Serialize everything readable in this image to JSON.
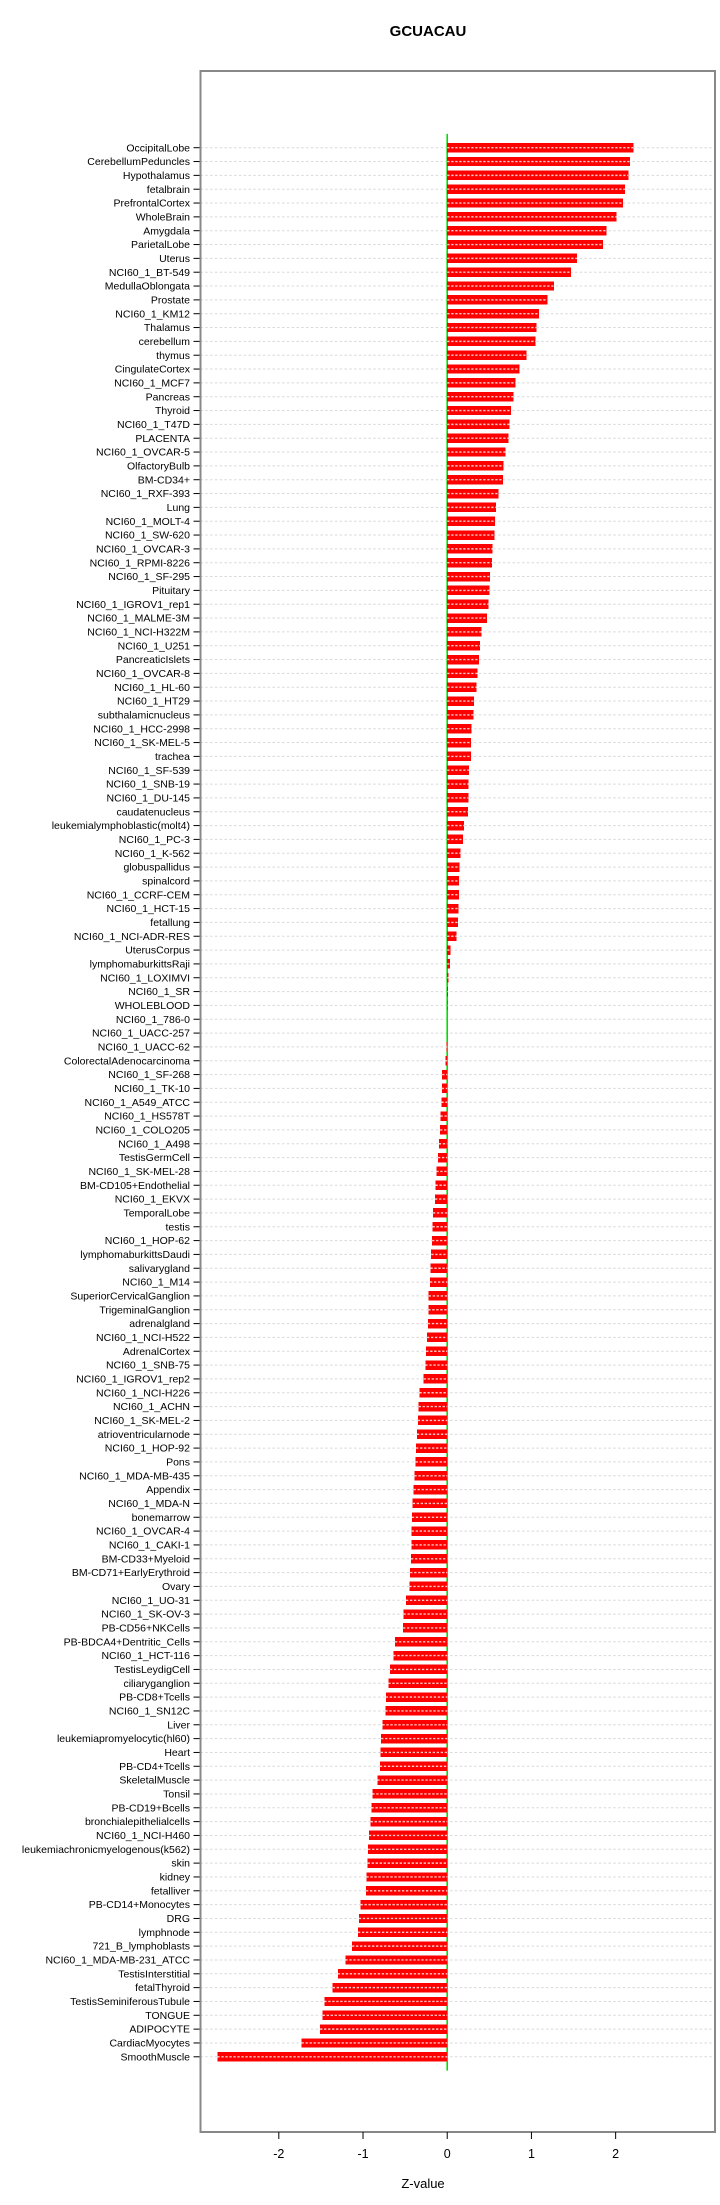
{
  "page": {
    "background": "#ffffff"
  },
  "chart_data": {
    "type": "bar",
    "orientation": "horizontal",
    "title": "GCUACAU",
    "xlabel": "Z-value",
    "x_ticks": [
      -2,
      -1,
      0,
      1,
      2
    ],
    "x_tick_labels": [
      "-2",
      "-1",
      "0",
      "1",
      "2"
    ],
    "xlim": [
      -2.93,
      3.18
    ],
    "grid": true,
    "legend": "none",
    "bar_color": "#ff0000",
    "bar_stripe_color": "#ffffff",
    "zero_line_color": "#00dd00",
    "grid_color": "#d8d8d8",
    "box_color": "#888888",
    "text_color": "#000000",
    "categories": [
      "OccipitalLobe",
      "CerebellumPeduncles",
      "Hypothalamus",
      "fetalbrain",
      "PrefrontalCortex",
      "WholeBrain",
      "Amygdala",
      "ParietalLobe",
      "Uterus",
      "NCI60_1_BT-549",
      "MedullaOblongata",
      "Prostate",
      "NCI60_1_KM12",
      "Thalamus",
      "cerebellum",
      "thymus",
      "CingulateCortex",
      "NCI60_1_MCF7",
      "Pancreas",
      "Thyroid",
      "NCI60_1_T47D",
      "PLACENTA",
      "NCI60_1_OVCAR-5",
      "OlfactoryBulb",
      "BM-CD34+",
      "NCI60_1_RXF-393",
      "Lung",
      "NCI60_1_MOLT-4",
      "NCI60_1_SW-620",
      "NCI60_1_OVCAR-3",
      "NCI60_1_RPMI-8226",
      "NCI60_1_SF-295",
      "Pituitary",
      "NCI60_1_IGROV1_rep1",
      "NCI60_1_MALME-3M",
      "NCI60_1_NCI-H322M",
      "NCI60_1_U251",
      "PancreaticIslets",
      "NCI60_1_OVCAR-8",
      "NCI60_1_HL-60",
      "NCI60_1_HT29",
      "subthalamicnucleus",
      "NCI60_1_HCC-2998",
      "NCI60_1_SK-MEL-5",
      "trachea",
      "NCI60_1_SF-539",
      "NCI60_1_SNB-19",
      "NCI60_1_DU-145",
      "caudatenucleus",
      "leukemialymphoblastic(molt4)",
      "NCI60_1_PC-3",
      "NCI60_1_K-562",
      "globuspallidus",
      "spinalcord",
      "NCI60_1_CCRF-CEM",
      "NCI60_1_HCT-15",
      "fetallung",
      "NCI60_1_NCI-ADR-RES",
      "UterusCorpus",
      "lymphomaburkittsRaji",
      "NCI60_1_LOXIMVI",
      "NCI60_1_SR",
      "WHOLEBLOOD",
      "NCI60_1_786-0",
      "NCI60_1_UACC-257",
      "NCI60_1_UACC-62",
      "ColorectalAdenocarcinoma",
      "NCI60_1_SF-268",
      "NCI60_1_TK-10",
      "NCI60_1_A549_ATCC",
      "NCI60_1_HS578T",
      "NCI60_1_COLO205",
      "NCI60_1_A498",
      "TestisGermCell",
      "NCI60_1_SK-MEL-28",
      "BM-CD105+Endothelial",
      "NCI60_1_EKVX",
      "TemporalLobe",
      "testis",
      "NCI60_1_HOP-62",
      "lymphomaburkittsDaudi",
      "salivarygland",
      "NCI60_1_M14",
      "SuperiorCervicalGanglion",
      "TrigeminalGanglion",
      "adrenalgland",
      "NCI60_1_NCI-H522",
      "AdrenalCortex",
      "NCI60_1_SNB-75",
      "NCI60_1_IGROV1_rep2",
      "NCI60_1_NCI-H226",
      "NCI60_1_ACHN",
      "NCI60_1_SK-MEL-2",
      "atrioventricularnode",
      "NCI60_1_HOP-92",
      "Pons",
      "NCI60_1_MDA-MB-435",
      "Appendix",
      "NCI60_1_MDA-N",
      "bonemarrow",
      "NCI60_1_OVCAR-4",
      "NCI60_1_CAKI-1",
      "BM-CD33+Myeloid",
      "BM-CD71+EarlyErythroid",
      "Ovary",
      "NCI60_1_UO-31",
      "NCI60_1_SK-OV-3",
      "PB-CD56+NKCells",
      "PB-BDCA4+Dentritic_Cells",
      "NCI60_1_HCT-116",
      "TestisLeydigCell",
      "ciliaryganglion",
      "PB-CD8+Tcells",
      "NCI60_1_SN12C",
      "Liver",
      "leukemiapromyelocytic(hl60)",
      "Heart",
      "PB-CD4+Tcells",
      "SkeletalMuscle",
      "Tonsil",
      "PB-CD19+Bcells",
      "bronchialepithelialcells",
      "NCI60_1_NCI-H460",
      "leukemiachronicmyelogenous(k562)",
      "skin",
      "kidney",
      "fetalliver",
      "PB-CD14+Monocytes",
      "DRG",
      "lymphnode",
      "721_B_lymphoblasts",
      "NCI60_1_MDA-MB-231_ATCC",
      "TestisInterstitial",
      "fetalThyroid",
      "TestisSeminiferousTubule",
      "TONGUE",
      "ADIPOCYTE",
      "CardiacMyocytes",
      "SmoothMuscle"
    ],
    "values": [
      2.21,
      2.17,
      2.15,
      2.11,
      2.09,
      2.01,
      1.89,
      1.85,
      1.54,
      1.47,
      1.27,
      1.19,
      1.09,
      1.06,
      1.05,
      0.94,
      0.86,
      0.81,
      0.79,
      0.76,
      0.74,
      0.73,
      0.69,
      0.67,
      0.66,
      0.61,
      0.58,
      0.57,
      0.56,
      0.54,
      0.53,
      0.51,
      0.5,
      0.49,
      0.47,
      0.41,
      0.39,
      0.38,
      0.36,
      0.35,
      0.32,
      0.31,
      0.29,
      0.285,
      0.28,
      0.26,
      0.255,
      0.25,
      0.245,
      0.2,
      0.19,
      0.16,
      0.145,
      0.14,
      0.138,
      0.135,
      0.13,
      0.11,
      0.04,
      0.03,
      0.015,
      0.008,
      0.005,
      0.002,
      -0.004,
      -0.01,
      -0.02,
      -0.06,
      -0.065,
      -0.07,
      -0.08,
      -0.085,
      -0.1,
      -0.11,
      -0.13,
      -0.14,
      -0.145,
      -0.17,
      -0.175,
      -0.18,
      -0.19,
      -0.2,
      -0.205,
      -0.22,
      -0.225,
      -0.23,
      -0.24,
      -0.25,
      -0.26,
      -0.28,
      -0.33,
      -0.34,
      -0.35,
      -0.36,
      -0.37,
      -0.375,
      -0.39,
      -0.4,
      -0.41,
      -0.42,
      -0.422,
      -0.425,
      -0.43,
      -0.44,
      -0.45,
      -0.49,
      -0.52,
      -0.525,
      -0.62,
      -0.64,
      -0.68,
      -0.7,
      -0.73,
      -0.735,
      -0.77,
      -0.785,
      -0.79,
      -0.8,
      -0.83,
      -0.89,
      -0.9,
      -0.91,
      -0.93,
      -0.94,
      -0.945,
      -0.96,
      -0.965,
      -1.03,
      -1.05,
      -1.06,
      -1.13,
      -1.21,
      -1.3,
      -1.36,
      -1.46,
      -1.48,
      -1.51,
      -1.73,
      -2.73
    ]
  }
}
